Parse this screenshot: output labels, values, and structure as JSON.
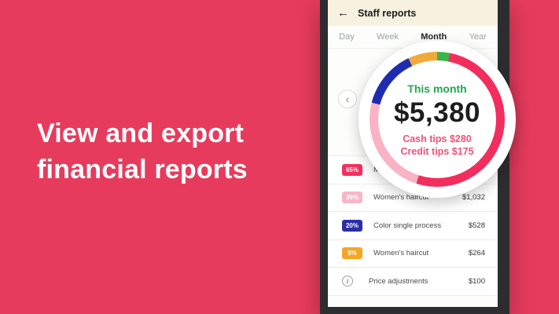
{
  "colors": {
    "background": "#e73b5d",
    "header_bg": "#f7f2df",
    "accent_green": "#1fa94f",
    "tips_text": "#ef537a"
  },
  "promo": {
    "headline_line1": "View and export",
    "headline_line2": "financial reports"
  },
  "phone": {
    "header": {
      "back_icon": "←",
      "title": "Staff reports"
    },
    "tabs": {
      "items": [
        "Day",
        "Week",
        "Month",
        "Year"
      ],
      "selected": "Month"
    },
    "carousel": {
      "prev_icon": "‹"
    }
  },
  "chart_data": {
    "type": "pie",
    "subtype": "donut",
    "title": "This month",
    "center_total": "$5,380",
    "center_lines": [
      "Cash tips $280",
      "Credit tips $175"
    ],
    "legend_position": "none",
    "segments": [
      {
        "name": "top-small-green",
        "percent": 3,
        "color": "#3bb54a"
      },
      {
        "name": "mens-haircut",
        "percent": 52,
        "color": "#f22e5e"
      },
      {
        "name": "womens-haircut",
        "percent": 24,
        "color": "#f9b3c4"
      },
      {
        "name": "color-single-process",
        "percent": 14,
        "color": "#1f2cb0"
      },
      {
        "name": "womens-haircut-2",
        "percent": 7,
        "color": "#f2a93b"
      }
    ]
  },
  "report": {
    "rows": [
      {
        "pct": "65%",
        "chip_color": "#f62e5d",
        "label": "Men's haircut",
        "value": ""
      },
      {
        "pct": "39%",
        "chip_color": "#f8b6c6",
        "label": "Women's haircut",
        "value": "$1,032"
      },
      {
        "pct": "20%",
        "chip_color": "#2a2fa6",
        "label": "Color single process",
        "value": "$528"
      },
      {
        "pct": "5%",
        "chip_color": "#f5a623",
        "label": "Women's haircut",
        "value": "$264"
      },
      {
        "pct": "i",
        "chip_color": "",
        "label": "Price adjustments",
        "value": "$100",
        "icon": "info"
      }
    ]
  }
}
